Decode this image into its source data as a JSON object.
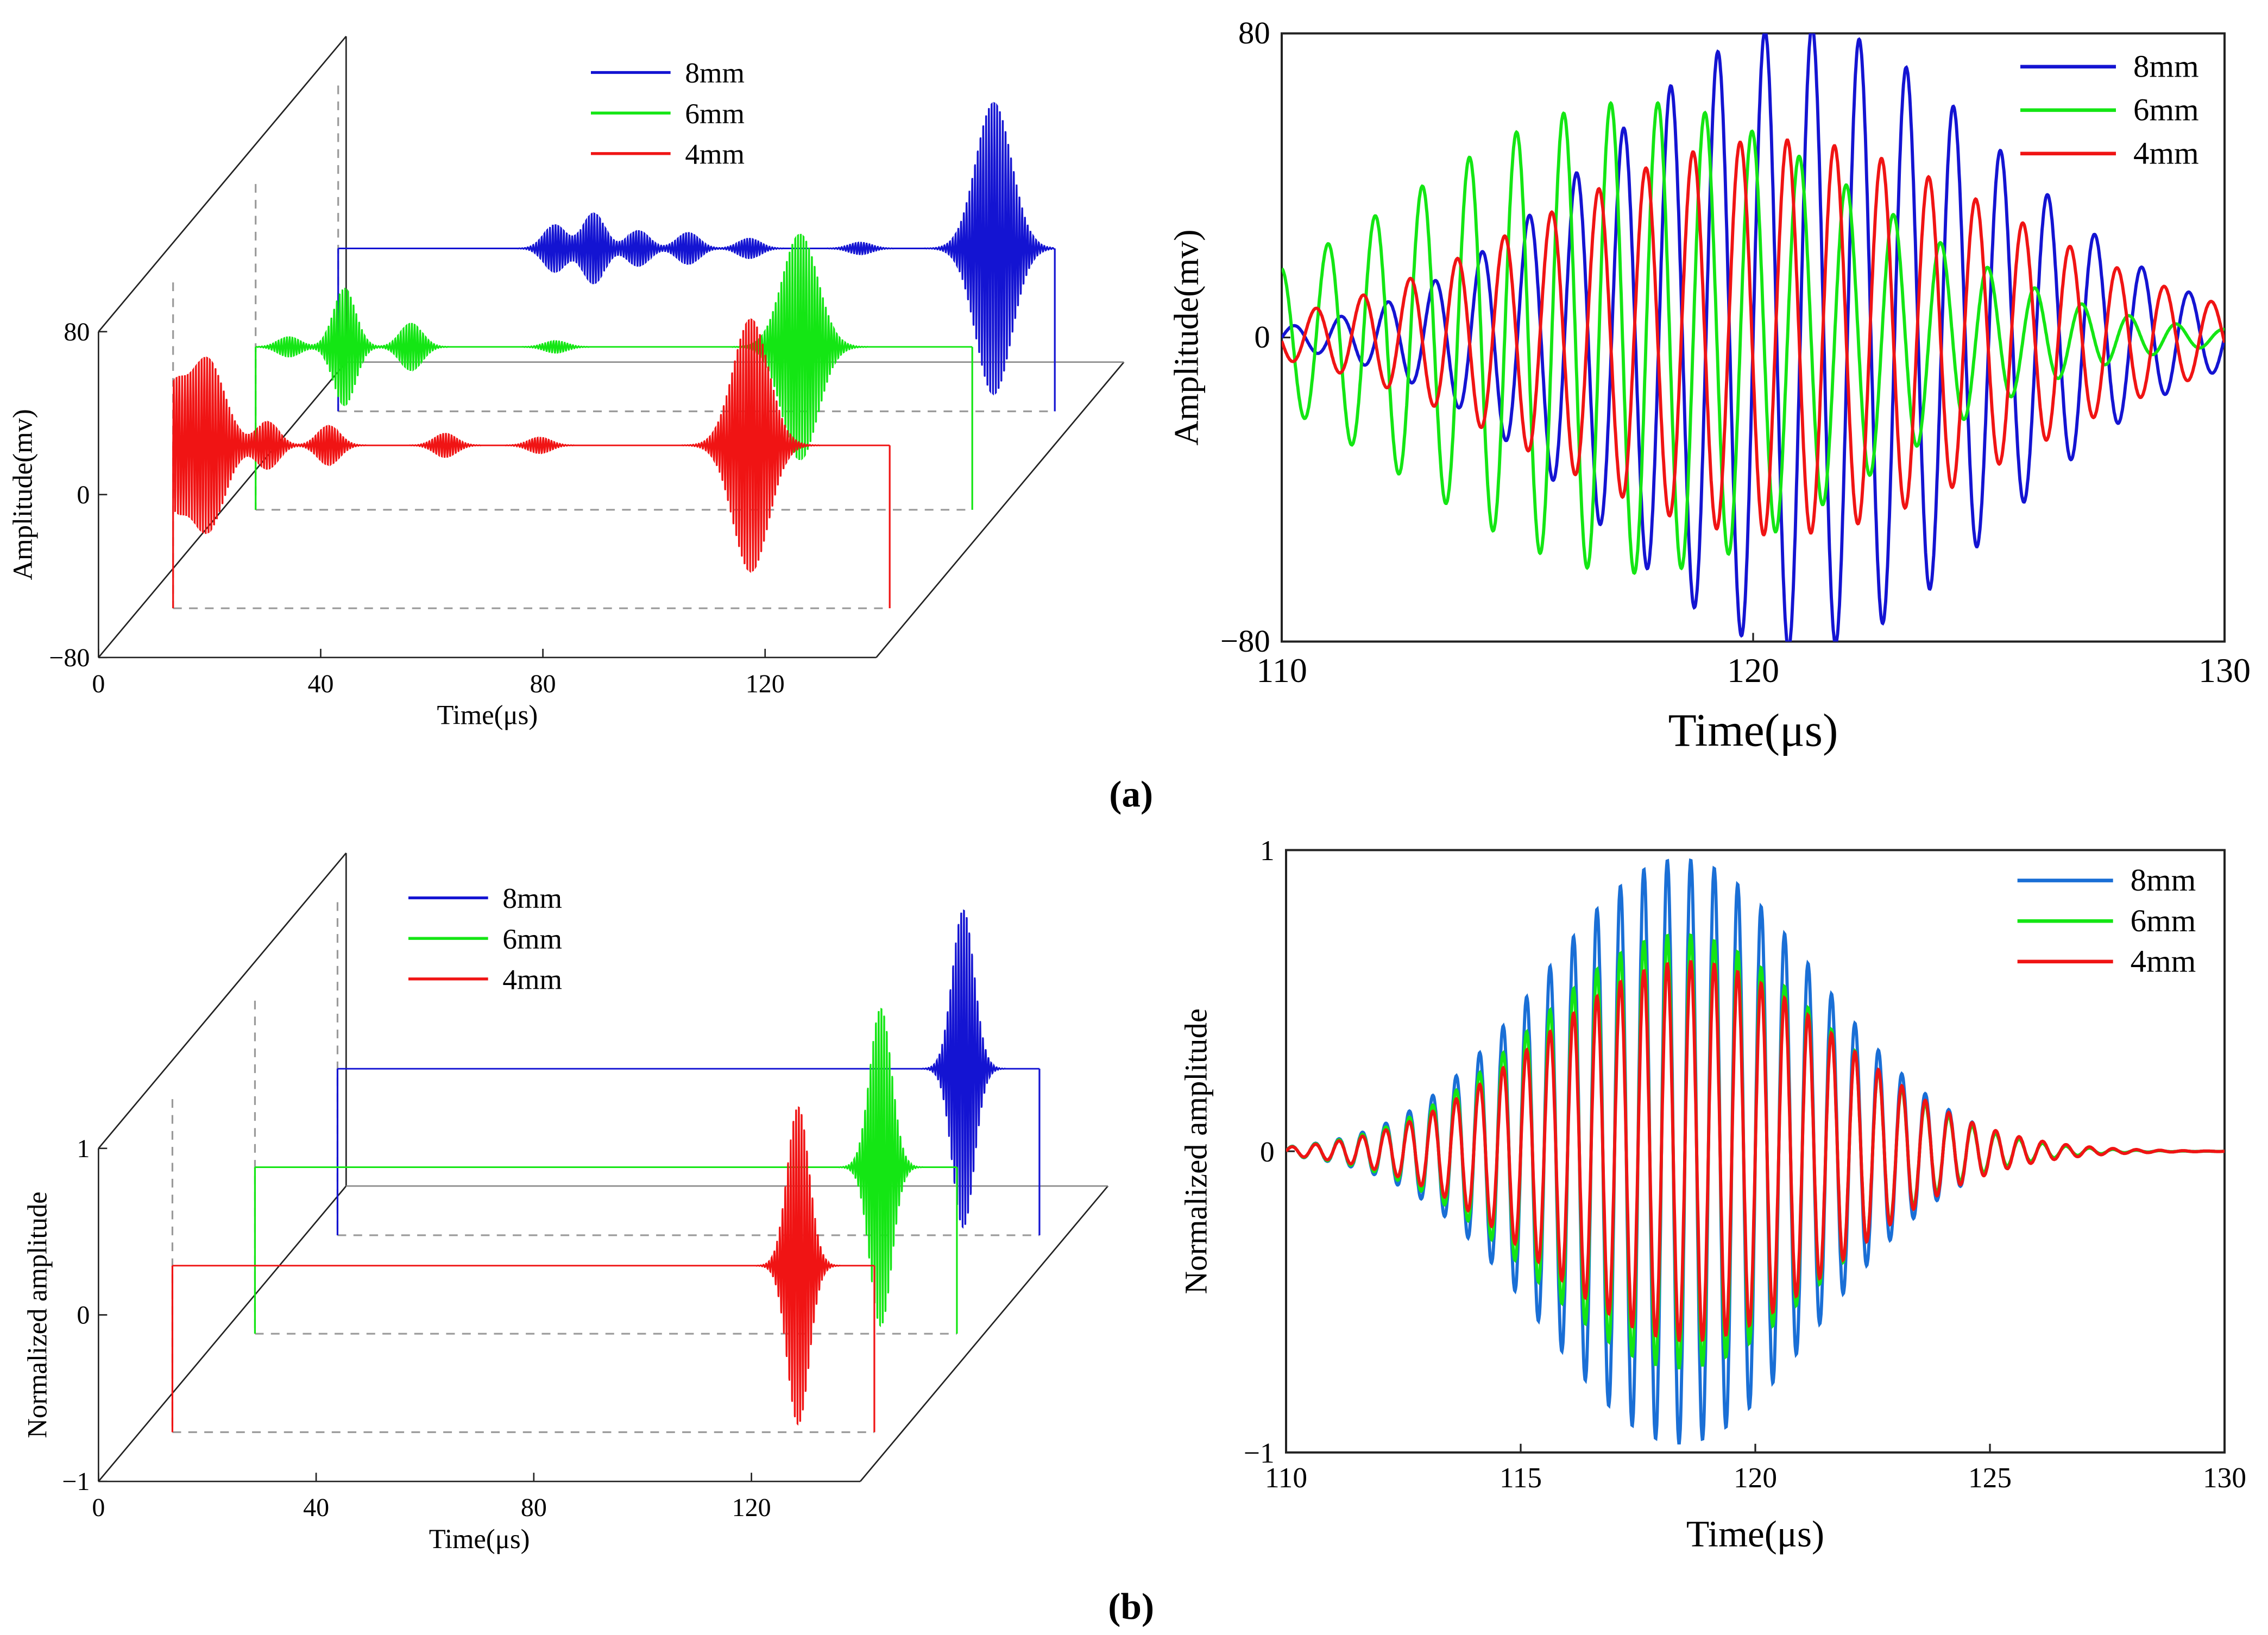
{
  "figure": {
    "panel_a_label": "(a)",
    "panel_b_label": "(b)",
    "colors": {
      "s8": "#1414d2",
      "s6": "#14e614",
      "s4": "#f01414",
      "s8_norm": "#1a6fd6",
      "dash": "#9a9a9a"
    }
  },
  "chart_data": [
    {
      "id": "a-3d",
      "type": "line",
      "title": "",
      "xlabel": "Time(μs)",
      "ylabel": "Amplitude(mv)",
      "xlim": [
        0,
        140
      ],
      "ylim": [
        -80,
        80
      ],
      "xticks": [
        "0",
        "40",
        "80",
        "120"
      ],
      "yticks": [
        "80",
        "0",
        "-80"
      ],
      "legend": [
        "8mm",
        "6mm",
        "4mm"
      ],
      "legend_position": "top-center",
      "series": [
        {
          "name": "8mm",
          "baseline_mv": 0,
          "events": [
            {
              "t": 45,
              "amp": 12
            },
            {
              "t": 52,
              "amp": 18
            },
            {
              "t": 60,
              "amp": 9
            },
            {
              "t": 69,
              "amp": 8
            },
            {
              "t": 80,
              "amp": 5
            },
            {
              "t": 100,
              "amp": 3
            },
            {
              "t": 124,
              "amp": 75
            }
          ]
        },
        {
          "name": "6mm",
          "baseline_mv": 0,
          "events": [
            {
              "t": 12,
              "amp": 5
            },
            {
              "t": 22,
              "amp": 30
            },
            {
              "t": 34,
              "amp": 12
            },
            {
              "t": 60,
              "amp": 3
            },
            {
              "t": 104,
              "amp": 58
            }
          ]
        },
        {
          "name": "4mm",
          "baseline_mv": 0,
          "events": [
            {
              "t": 6,
              "amp": 25
            },
            {
              "t": 12,
              "amp": 45
            },
            {
              "t": 23,
              "amp": 12
            },
            {
              "t": 34,
              "amp": 10
            },
            {
              "t": 55,
              "amp": 6
            },
            {
              "t": 72,
              "amp": 4
            },
            {
              "t": 110,
              "amp": 65
            }
          ]
        }
      ]
    },
    {
      "id": "a-zoom",
      "type": "line",
      "title": "",
      "xlabel": "Time(μs)",
      "ylabel": "Amplitude(mv)",
      "xlim": [
        110,
        130
      ],
      "ylim": [
        -80,
        80
      ],
      "xticks": [
        "110",
        "120",
        "130"
      ],
      "yticks": [
        "80",
        "0",
        "-80"
      ],
      "legend": [
        "8mm",
        "6mm",
        "4mm"
      ],
      "legend_position": "top-right",
      "series": [
        {
          "name": "8mm",
          "frequency_mhz": 1.0,
          "peak_mv": 82,
          "center_us": 121.0,
          "sigma_us": 4.2,
          "phase": 0.0
        },
        {
          "name": "6mm",
          "frequency_mhz": 1.0,
          "peak_mv": 62,
          "center_us": 117.5,
          "sigma_us": 4.8,
          "phase": 1.7
        },
        {
          "name": "4mm",
          "frequency_mhz": 1.0,
          "peak_mv": 52,
          "center_us": 120.5,
          "sigma_us": 5.0,
          "phase": 3.3
        }
      ]
    },
    {
      "id": "b-3d",
      "type": "line",
      "title": "",
      "xlabel": "Time(μs)",
      "ylabel": "Normalized amplitude",
      "xlim": [
        0,
        140
      ],
      "ylim": [
        -1,
        1
      ],
      "xticks": [
        "0",
        "40",
        "80",
        "120"
      ],
      "yticks": [
        "1",
        "0",
        "-1"
      ],
      "legend": [
        "8mm",
        "6mm",
        "4mm"
      ],
      "legend_position": "top-center",
      "series": [
        {
          "name": "8mm",
          "baseline": 0,
          "events": [
            {
              "t": 121,
              "amp": 1.0
            }
          ]
        },
        {
          "name": "6mm",
          "baseline": 0,
          "events": [
            {
              "t": 121,
              "amp": 1.0
            }
          ]
        },
        {
          "name": "4mm",
          "baseline": 0,
          "events": [
            {
              "t": 121,
              "amp": 1.0
            }
          ]
        }
      ]
    },
    {
      "id": "b-zoom",
      "type": "line",
      "title": "",
      "xlabel": "Time(μs)",
      "ylabel": "Normalized amplitude",
      "xlim": [
        110,
        130
      ],
      "ylim": [
        -1,
        1
      ],
      "xticks": [
        "110",
        "115",
        "120",
        "125",
        "130"
      ],
      "yticks": [
        "1",
        "0",
        "-1"
      ],
      "legend": [
        "8mm",
        "6mm",
        "4mm"
      ],
      "legend_position": "top-right",
      "series": [
        {
          "name": "8mm",
          "frequency_mhz": 2.0,
          "peak": 0.97,
          "center_us": 118.4,
          "sigma_us": 2.9
        },
        {
          "name": "6mm",
          "frequency_mhz": 2.0,
          "peak": 0.72,
          "center_us": 118.4,
          "sigma_us": 3.0
        },
        {
          "name": "4mm",
          "frequency_mhz": 2.0,
          "peak": 0.63,
          "center_us": 118.6,
          "sigma_us": 3.1
        }
      ]
    }
  ]
}
